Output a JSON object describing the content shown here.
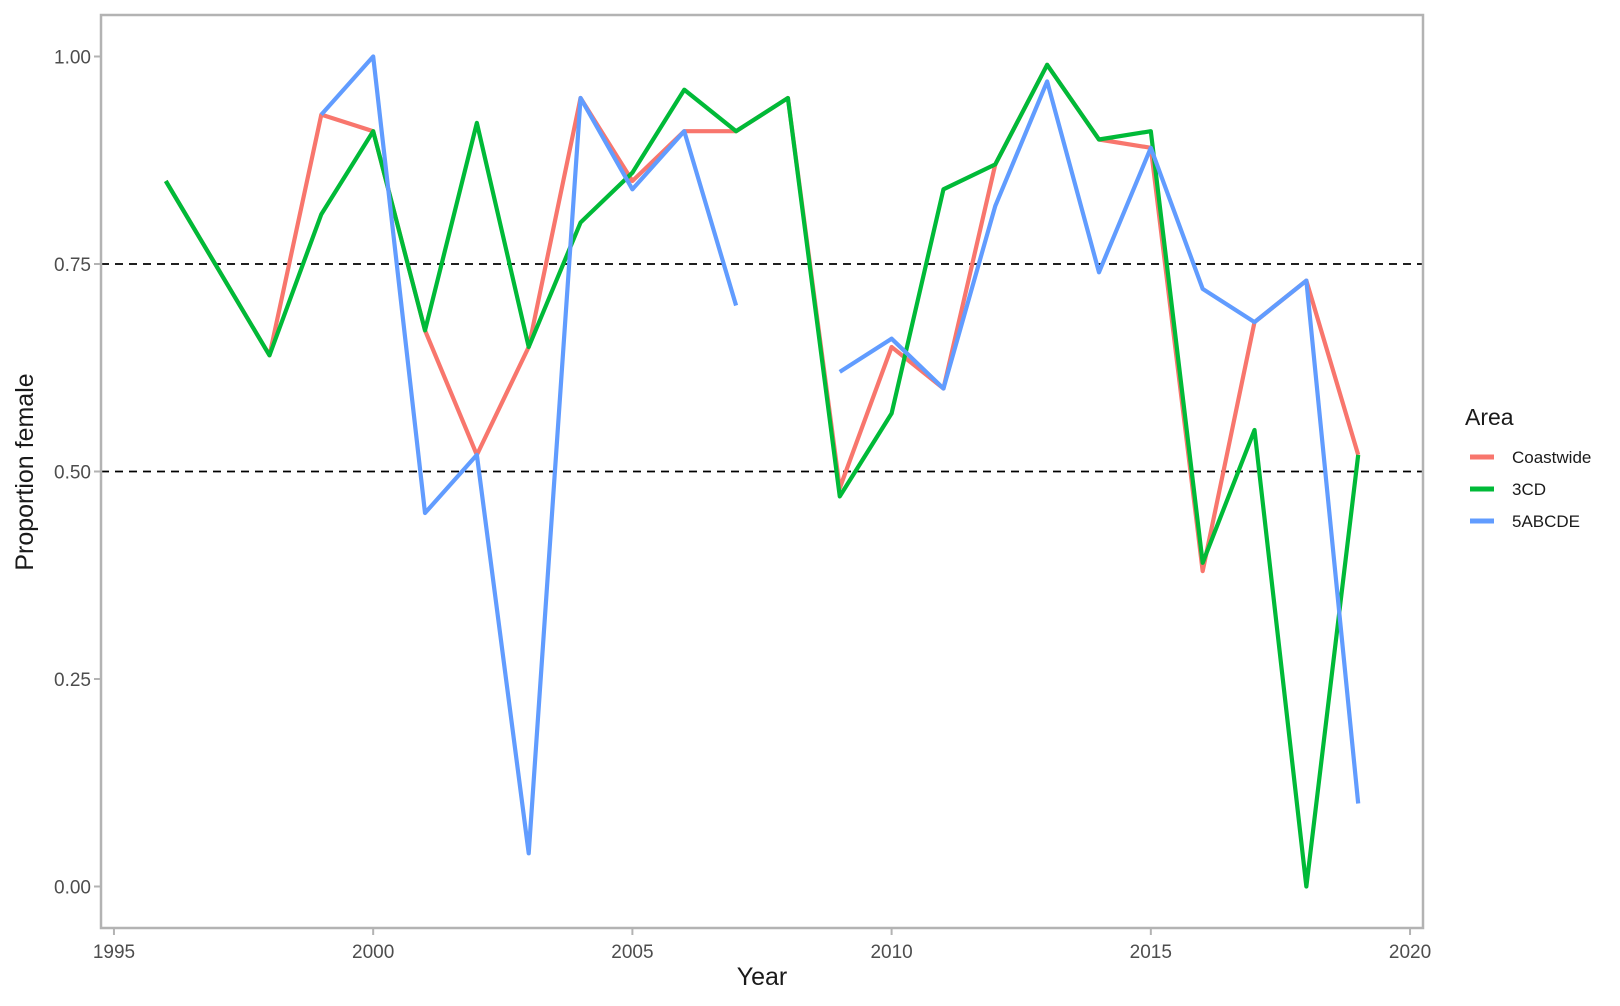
{
  "chart_data": {
    "type": "line",
    "title": "",
    "xlabel": "Year",
    "ylabel": "Proportion female",
    "xlim": [
      1995,
      2020
    ],
    "ylim": [
      0,
      1
    ],
    "xticks": [
      1995,
      2000,
      2005,
      2010,
      2015,
      2020
    ],
    "xtick_labels": [
      "1995",
      "2000",
      "2005",
      "2010",
      "2015",
      "2020"
    ],
    "yticks": [
      0,
      0.25,
      0.5,
      0.75,
      1
    ],
    "ytick_labels": [
      "0.00",
      "0.25",
      "0.50",
      "0.75",
      "1.00"
    ],
    "reference_lines": [
      0.5,
      0.75
    ],
    "grid": false,
    "legend": {
      "title": "Area",
      "position": "right"
    },
    "series": [
      {
        "name": "Coastwide",
        "color": "#F8766D",
        "points": [
          [
            1996,
            0.85
          ],
          [
            1998,
            0.64
          ],
          [
            1999,
            0.93
          ],
          [
            2000,
            0.91
          ],
          [
            2001,
            0.67
          ],
          [
            2002,
            0.52
          ],
          [
            2003,
            0.65
          ],
          [
            2004,
            0.95
          ],
          [
            2005,
            0.85
          ],
          [
            2006,
            0.91
          ],
          [
            2007,
            0.91
          ],
          [
            2008,
            0.95
          ],
          [
            2009,
            0.48
          ],
          [
            2010,
            0.65
          ],
          [
            2011,
            0.6
          ],
          [
            2012,
            0.87
          ],
          [
            2013,
            0.99
          ],
          [
            2014,
            0.9
          ],
          [
            2015,
            0.89
          ],
          [
            2016,
            0.38
          ],
          [
            2017,
            0.68
          ],
          [
            2018,
            0.73
          ],
          [
            2019,
            0.52
          ]
        ]
      },
      {
        "name": "3CD",
        "color": "#00BA38",
        "points": [
          [
            1996,
            0.85
          ],
          [
            1998,
            0.64
          ],
          [
            1999,
            0.81
          ],
          [
            2000,
            0.91
          ],
          [
            2001,
            0.67
          ],
          [
            2002,
            0.92
          ],
          [
            2003,
            0.65
          ],
          [
            2004,
            0.8
          ],
          [
            2005,
            0.86
          ],
          [
            2006,
            0.96
          ],
          [
            2007,
            0.91
          ],
          [
            2008,
            0.95
          ],
          [
            2009,
            0.47
          ],
          [
            2010,
            0.57
          ],
          [
            2011,
            0.84
          ],
          [
            2012,
            0.87
          ],
          [
            2013,
            0.99
          ],
          [
            2014,
            0.9
          ],
          [
            2015,
            0.91
          ],
          [
            2016,
            0.39
          ],
          [
            2017,
            0.55
          ],
          [
            2018,
            0.0
          ],
          [
            2019,
            0.52
          ]
        ]
      },
      {
        "name": "5ABCDE",
        "color": "#619CFF",
        "segments": [
          [
            [
              1999,
              0.93
            ],
            [
              2000,
              1.0
            ],
            [
              2001,
              0.45
            ],
            [
              2002,
              0.52
            ],
            [
              2003,
              0.04
            ],
            [
              2004,
              0.95
            ],
            [
              2005,
              0.84
            ],
            [
              2006,
              0.91
            ],
            [
              2007,
              0.7
            ]
          ],
          [
            [
              2009,
              0.62
            ],
            [
              2010,
              0.66
            ],
            [
              2011,
              0.6
            ],
            [
              2012,
              0.82
            ],
            [
              2013,
              0.97
            ],
            [
              2014,
              0.74
            ],
            [
              2015,
              0.89
            ],
            [
              2016,
              0.72
            ],
            [
              2017,
              0.68
            ],
            [
              2018,
              0.73
            ],
            [
              2019,
              0.1
            ]
          ]
        ]
      }
    ]
  }
}
